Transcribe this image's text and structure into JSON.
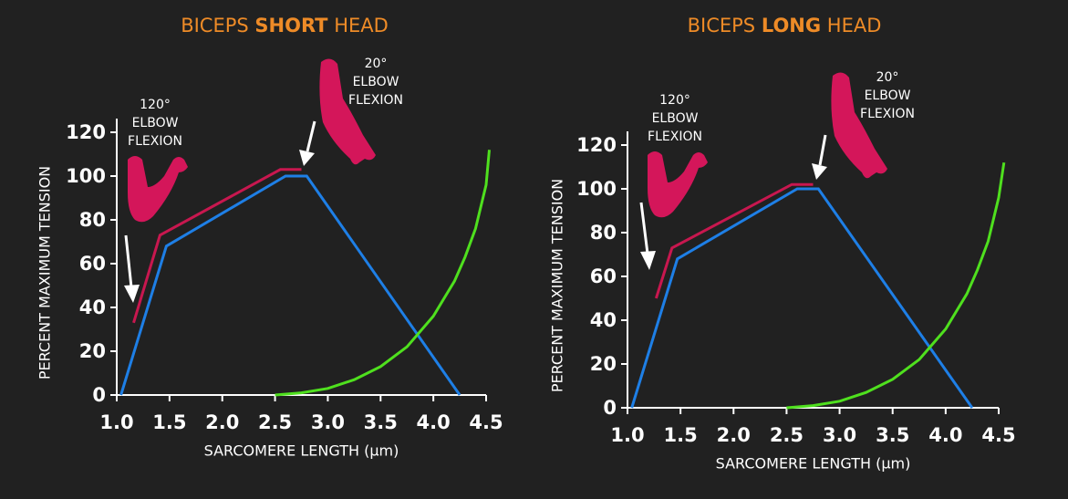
{
  "chart_data": [
    {
      "type": "line",
      "title": [
        "BICEPS",
        "SHORT",
        "HEAD"
      ],
      "xlabel": "SARCOMERE LENGTH (µm)",
      "ylabel": "PERCENT MAXIMUM TENSION",
      "xlim": [
        1,
        4.5
      ],
      "ylim": [
        0,
        120
      ],
      "xticks": [
        {
          "value": 1,
          "label": "1.0"
        },
        1.5,
        {
          "value": 2,
          "label": "2.0"
        },
        2.5,
        {
          "value": 3,
          "label": "3.0"
        },
        3.5,
        {
          "value": 4,
          "label": "4.0"
        },
        4.5
      ],
      "yticks": [
        0,
        20,
        40,
        60,
        80,
        100,
        120
      ],
      "annotations": [
        [
          "120°",
          "ELBOW",
          "FLEXION"
        ],
        [
          "20°",
          "ELBOW",
          "FLEXION"
        ]
      ],
      "series": [
        {
          "color": "#1e7fe6",
          "x": [
            1.04,
            1.47,
            2.6,
            2.8,
            4.25
          ],
          "values": [
            0,
            68,
            100,
            100,
            0
          ]
        },
        {
          "color": "#c8174f",
          "x": [
            1.16,
            1.41,
            2.55,
            2.75
          ],
          "values": [
            33,
            73,
            103,
            103
          ]
        },
        {
          "color": "#4fe01e",
          "x": [
            2.5,
            2.75,
            3.0,
            3.25,
            3.5,
            3.75,
            4.0,
            4.1,
            4.2,
            4.3,
            4.4,
            4.5,
            4.53
          ],
          "values": [
            0,
            1,
            3,
            7,
            13,
            22,
            36,
            44,
            52,
            63,
            76,
            96,
            112
          ]
        }
      ]
    },
    {
      "type": "line",
      "title": [
        "BICEPS",
        "LONG",
        "HEAD"
      ],
      "xlabel": "SARCOMERE LENGTH (µm)",
      "ylabel": "PERCENT MAXIMUM TENSION",
      "xlim": [
        1,
        4.5
      ],
      "ylim": [
        0,
        120
      ],
      "xticks": [
        {
          "value": 1,
          "label": "1.0"
        },
        1.5,
        {
          "value": 2,
          "label": "2.0"
        },
        2.5,
        {
          "value": 3,
          "label": "3.0"
        },
        3.5,
        {
          "value": 4,
          "label": "4.0"
        },
        4.5
      ],
      "yticks": [
        0,
        20,
        40,
        60,
        80,
        100,
        120
      ],
      "annotations": [
        [
          "120°",
          "ELBOW",
          "FLEXION"
        ],
        [
          "20°",
          "ELBOW",
          "FLEXION"
        ]
      ],
      "series": [
        {
          "color": "#1e7fe6",
          "x": [
            1.04,
            1.47,
            2.6,
            2.8,
            4.25
          ],
          "values": [
            0,
            68,
            100,
            100,
            0
          ]
        },
        {
          "color": "#c8174f",
          "x": [
            1.27,
            1.42,
            2.55,
            2.75
          ],
          "values": [
            50,
            73,
            102,
            102
          ]
        },
        {
          "color": "#4fe01e",
          "x": [
            2.5,
            2.75,
            3.0,
            3.25,
            3.5,
            3.75,
            4.0,
            4.1,
            4.2,
            4.3,
            4.4,
            4.5,
            4.55
          ],
          "values": [
            0,
            1,
            3,
            7,
            13,
            22,
            36,
            44,
            52,
            63,
            76,
            96,
            112
          ]
        }
      ]
    }
  ]
}
